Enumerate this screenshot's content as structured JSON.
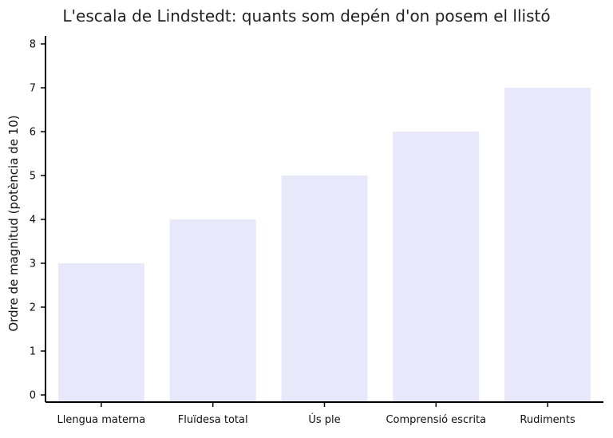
{
  "chart_data": {
    "type": "bar",
    "title": "L'escala de Lindstedt: quants som depén d'on posem el llistó",
    "xlabel": "",
    "ylabel": "Ordre de magnitud (potència de 10)",
    "categories": [
      "Llengua materna",
      "Fluïdesa total",
      "Ús ple",
      "Comprensió escrita",
      "Rudiments"
    ],
    "values": [
      3,
      4,
      5,
      6,
      7
    ],
    "ylim": [
      0,
      8
    ],
    "yticks": [
      "0",
      "1",
      "2",
      "3",
      "4",
      "5",
      "6",
      "7",
      "8"
    ],
    "bar_color": "#e8e8fb",
    "axis_color": "#000000",
    "grid": false,
    "legend": "none"
  }
}
